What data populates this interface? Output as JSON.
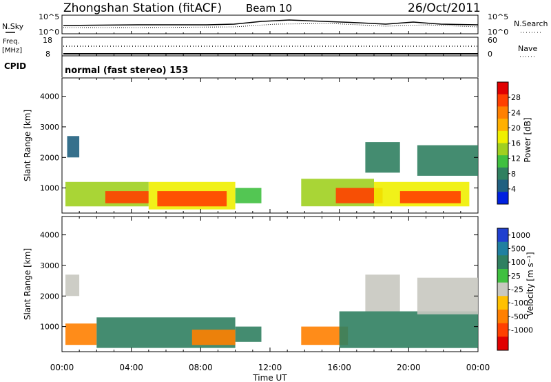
{
  "header": {
    "title": "Zhongshan Station (fitACF)",
    "beam": "Beam 10",
    "date": "26/Oct/2011",
    "cpid_label": "CPID",
    "cpid_value": "normal (fast stereo) 153"
  },
  "noise_panel": {
    "left_label": "N.Sky",
    "right_label": "N.Search",
    "left_ticks": [
      "10^5",
      "10^0"
    ],
    "right_ticks": [
      "10^5",
      "10^0"
    ]
  },
  "freq_panel": {
    "left_label_1": "Freq.",
    "left_label_2": "[MHz]",
    "right_label": "Nave",
    "left_ticks": [
      "18",
      "8"
    ],
    "right_ticks": [
      "60",
      "0"
    ]
  },
  "time_axis": {
    "label": "Time UT",
    "ticks": [
      "00:00",
      "04:00",
      "08:00",
      "12:00",
      "16:00",
      "20:00",
      "00:00"
    ]
  },
  "power_bar": {
    "title": "Power [dB]",
    "ticks": [
      "28",
      "24",
      "20",
      "16",
      "12",
      "8",
      "4"
    ],
    "colors": [
      "#e00000",
      "#ff4000",
      "#ff8000",
      "#ffb000",
      "#f0f000",
      "#a0d020",
      "#40c040",
      "#308060",
      "#206080",
      "#0020e0"
    ]
  },
  "velocity_bar": {
    "title": "Velocity [m s⁻¹]",
    "ticks": [
      "1000",
      "500",
      "100",
      "25",
      "-25",
      "-100",
      "-500",
      "-1000"
    ],
    "colors": [
      "#2040d0",
      "#2080a0",
      "#308060",
      "#40c040",
      "#c8c8c0",
      "#ffc000",
      "#ff8000",
      "#ff4000",
      "#e00000"
    ]
  },
  "chart_data": [
    {
      "type": "heatmap",
      "title": "Power [dB]",
      "xlabel": "Time UT",
      "ylabel": "Slant Range [km]",
      "x_ticks": [
        "00:00",
        "04:00",
        "08:00",
        "12:00",
        "16:00",
        "20:00",
        "00:00"
      ],
      "xlim_hours": [
        0,
        24
      ],
      "ylim": [
        180,
        4600
      ],
      "y_ticks": [
        1000,
        2000,
        3000,
        4000
      ],
      "colorbar_range": [
        0,
        32
      ],
      "colorbar_ticks": [
        4,
        8,
        12,
        16,
        20,
        24,
        28
      ],
      "regions": [
        {
          "t0": 0.2,
          "t1": 5.0,
          "r0": 400,
          "r1": 1200,
          "value": 14
        },
        {
          "t0": 2.5,
          "t1": 5.0,
          "r0": 500,
          "r1": 900,
          "value": 26
        },
        {
          "t0": 5.0,
          "t1": 10.0,
          "r0": 300,
          "r1": 1200,
          "value": 16
        },
        {
          "t0": 5.5,
          "t1": 9.5,
          "r0": 400,
          "r1": 900,
          "value": 28
        },
        {
          "t0": 10.0,
          "t1": 11.5,
          "r0": 500,
          "r1": 1000,
          "value": 12
        },
        {
          "t0": 13.8,
          "t1": 18.0,
          "r0": 400,
          "r1": 1300,
          "value": 14
        },
        {
          "t0": 15.8,
          "t1": 18.5,
          "r0": 500,
          "r1": 1000,
          "value": 26
        },
        {
          "t0": 18.0,
          "t1": 23.5,
          "r0": 400,
          "r1": 1200,
          "value": 18
        },
        {
          "t0": 19.5,
          "t1": 23.0,
          "r0": 500,
          "r1": 900,
          "value": 26
        },
        {
          "t0": 17.5,
          "t1": 19.5,
          "r0": 1500,
          "r1": 2500,
          "value": 8
        },
        {
          "t0": 20.5,
          "t1": 24.0,
          "r0": 1400,
          "r1": 2400,
          "value": 8
        },
        {
          "t0": 0.3,
          "t1": 1.0,
          "r0": 2000,
          "r1": 2700,
          "value": 6
        }
      ]
    },
    {
      "type": "heatmap",
      "title": "Velocity [m s⁻¹]",
      "xlabel": "Time UT",
      "ylabel": "Slant Range [km]",
      "x_ticks": [
        "00:00",
        "04:00",
        "08:00",
        "12:00",
        "16:00",
        "20:00",
        "00:00"
      ],
      "xlim_hours": [
        0,
        24
      ],
      "ylim": [
        180,
        4600
      ],
      "y_ticks": [
        1000,
        2000,
        3000,
        4000
      ],
      "colorbar_ticks": [
        1000,
        500,
        100,
        25,
        -25,
        -100,
        -500,
        -1000
      ],
      "regions": [
        {
          "t0": 0.2,
          "t1": 2.0,
          "r0": 400,
          "r1": 1100,
          "value": -300
        },
        {
          "t0": 2.0,
          "t1": 10.0,
          "r0": 300,
          "r1": 1300,
          "value": 200
        },
        {
          "t0": 7.5,
          "t1": 10.0,
          "r0": 400,
          "r1": 900,
          "value": -300
        },
        {
          "t0": 10.0,
          "t1": 11.5,
          "r0": 500,
          "r1": 1000,
          "value": 200
        },
        {
          "t0": 13.8,
          "t1": 16.5,
          "r0": 400,
          "r1": 1000,
          "value": -300
        },
        {
          "t0": 16.0,
          "t1": 24.0,
          "r0": 300,
          "r1": 1500,
          "value": 200
        },
        {
          "t0": 17.5,
          "t1": 19.5,
          "r0": 1500,
          "r1": 2700,
          "value": 0
        },
        {
          "t0": 20.5,
          "t1": 24.0,
          "r0": 1400,
          "r1": 2600,
          "value": 0
        },
        {
          "t0": 0.2,
          "t1": 1.0,
          "r0": 2000,
          "r1": 2700,
          "value": 0
        }
      ]
    }
  ]
}
